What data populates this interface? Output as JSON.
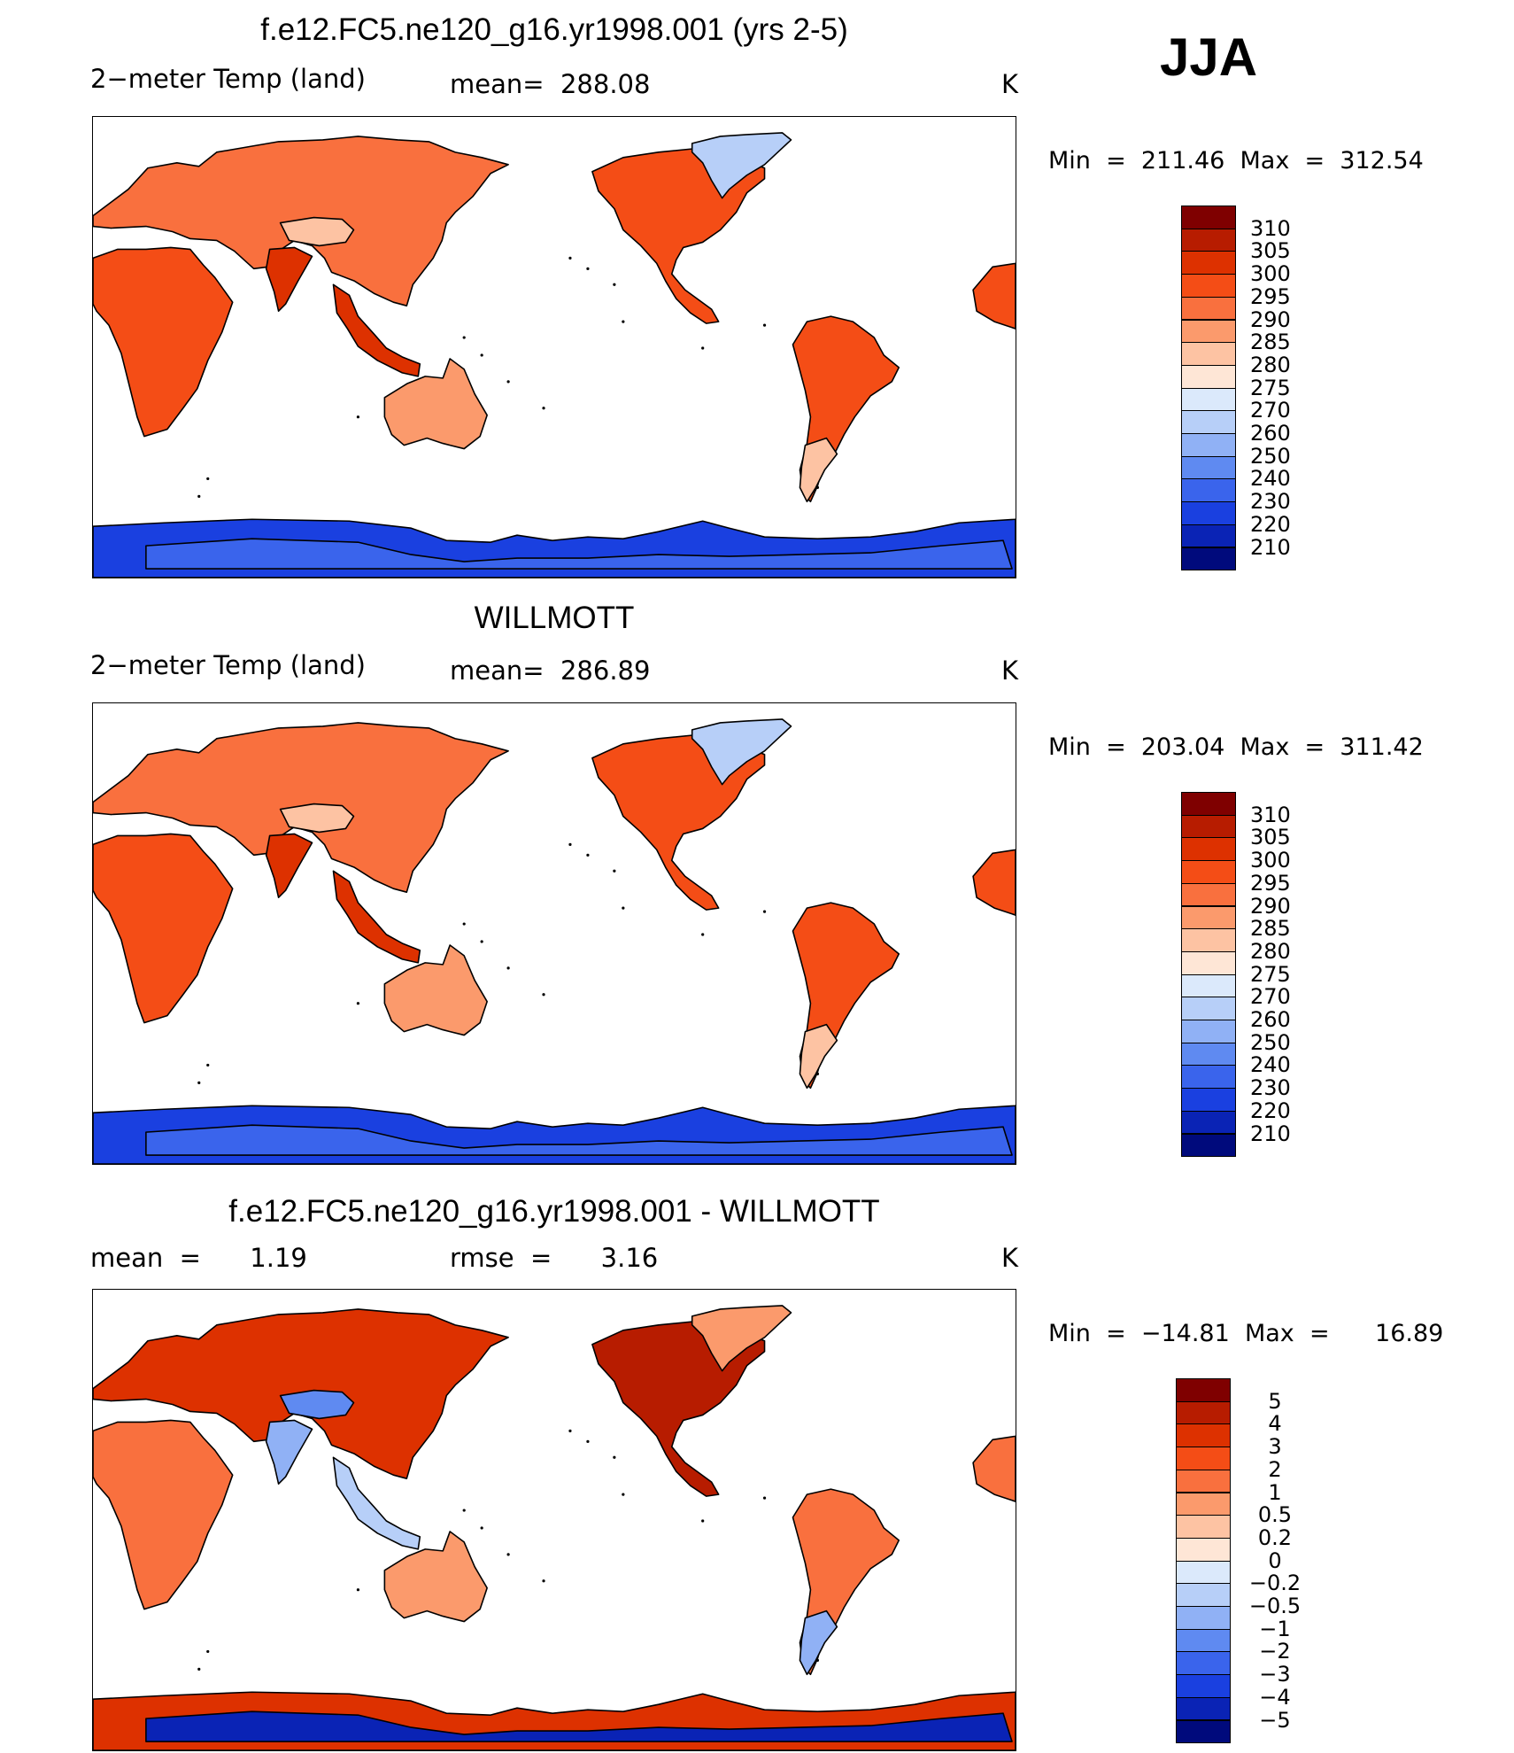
{
  "season": "JJA",
  "panels": [
    {
      "title": "f.e12.FC5.ne120_g16.yr1998.001 (yrs 2-5)",
      "left_label": "2−meter Temp (land)",
      "mid_label": "mean=  288.08",
      "units": "K",
      "min_label": "Min  =  211.46",
      "max_label": "Max  =  312.54",
      "scheme": "abs"
    },
    {
      "title": "WILLMOTT",
      "left_label": "2−meter Temp (land)",
      "mid_label": "mean=  286.89",
      "units": "K",
      "min_label": "Min  =  203.04",
      "max_label": "Max  =  311.42",
      "scheme": "abs"
    },
    {
      "title": "f.e12.FC5.ne120_g16.yr1998.001 - WILLMOTT",
      "left_label": "mean  =      1.19",
      "mid_label": "rmse  =      3.16",
      "units": "K",
      "min_label": "Min  =  −14.81",
      "max_label": "Max  =      16.89",
      "scheme": "diff"
    }
  ],
  "colorbars": {
    "abs": {
      "labels": [
        "310",
        "305",
        "300",
        "295",
        "290",
        "285",
        "280",
        "275",
        "270",
        "260",
        "250",
        "240",
        "230",
        "220",
        "210"
      ],
      "colors": [
        "#7f0000",
        "#b71c00",
        "#dd3100",
        "#f44d16",
        "#f9703e",
        "#fb9a6c",
        "#fdc3a3",
        "#fee6d6",
        "#dbe9fb",
        "#b7cff8",
        "#90b1f5",
        "#5f8af1",
        "#3a64ec",
        "#1a40e0",
        "#0a23b5",
        "#000a7c"
      ]
    },
    "diff": {
      "labels": [
        "5",
        "4",
        "3",
        "2",
        "1",
        "0.5",
        "0.2",
        "0",
        "−0.2",
        "−0.5",
        "−1",
        "−2",
        "−3",
        "−4",
        "−5"
      ],
      "colors": [
        "#7f0000",
        "#b71c00",
        "#dd3100",
        "#f44d16",
        "#f9703e",
        "#fb9a6c",
        "#fdc3a3",
        "#fee6d6",
        "#dbe9fb",
        "#b7cff8",
        "#90b1f5",
        "#5f8af1",
        "#3a64ec",
        "#1a40e0",
        "#0a23b5",
        "#000a7c"
      ]
    }
  },
  "map_fills": {
    "abs": {
      "eurasia": "#f9703e",
      "tibet": "#fdc3a3",
      "africa": "#f44d16",
      "india": "#dd3100",
      "se_asia": "#dd3100",
      "australia": "#fb9a6c",
      "north_america": "#f44d16",
      "greenland": "#b7cff8",
      "south_america": "#f44d16",
      "patagonia": "#fdc3a3",
      "antarctica": "#1a40e0",
      "antarctica_inner": "#3a64ec"
    },
    "diff": {
      "eurasia": "#dd3100",
      "tibet": "#5f8af1",
      "africa": "#f9703e",
      "india": "#90b1f5",
      "se_asia": "#b7cff8",
      "australia": "#fb9a6c",
      "north_america": "#b71c00",
      "greenland": "#fb9a6c",
      "south_america": "#f9703e",
      "patagonia": "#90b1f5",
      "antarctica": "#dd3100",
      "antarctica_inner": "#0a23b5"
    }
  }
}
